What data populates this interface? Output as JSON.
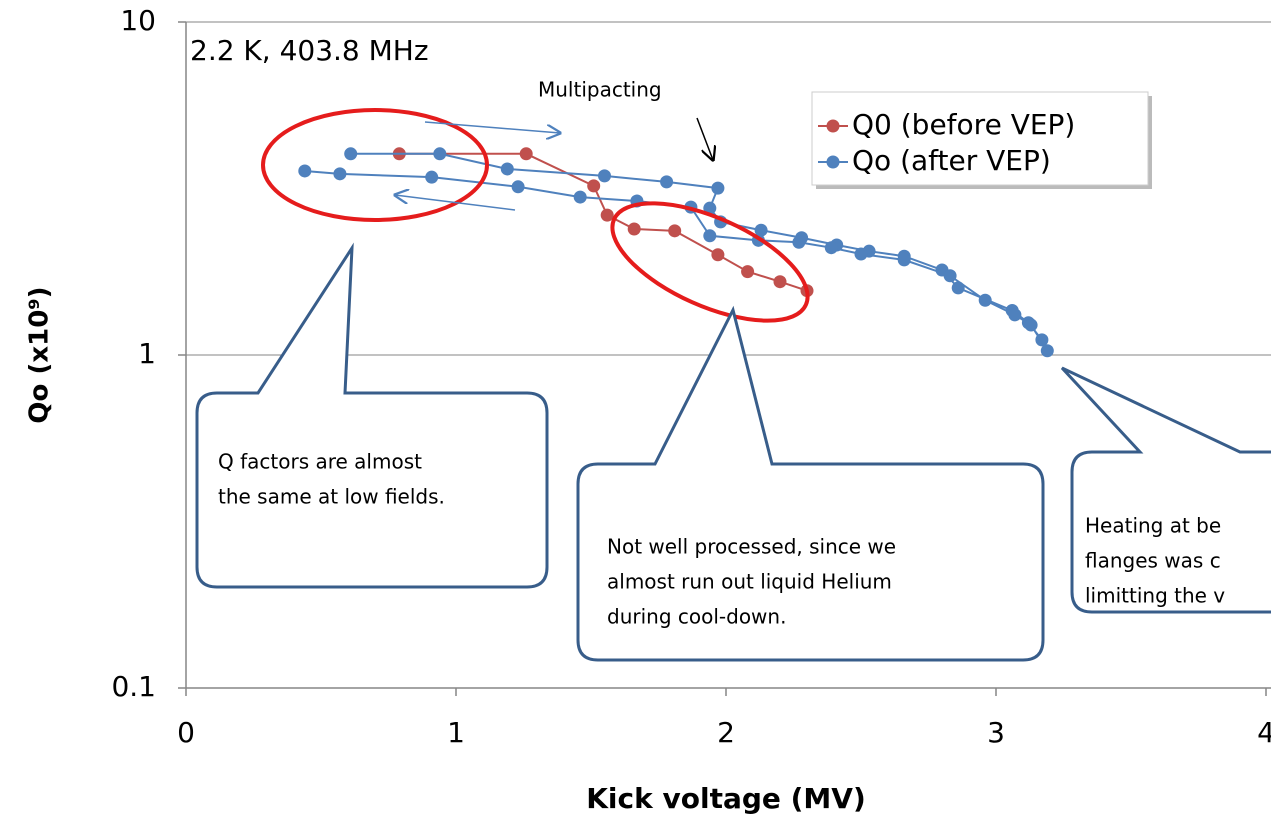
{
  "chart_data": {
    "type": "line",
    "xlabel": "Kick voltage (MV)",
    "ylabel": "Qo (x10⁹)",
    "xlim": [
      0,
      4
    ],
    "xticks": [
      0,
      1,
      2,
      3,
      4
    ],
    "ylim": [
      0.1,
      10
    ],
    "yticks": [
      0.1,
      1,
      10
    ],
    "log_y": true,
    "grid": true,
    "legend": "upper right",
    "series": [
      {
        "name": "Q0 (before VEP)",
        "color": "#c0504d",
        "x": [
          0.79,
          1.26,
          1.51,
          1.56,
          1.66,
          1.81,
          1.97,
          2.08,
          2.2,
          2.3
        ],
        "values": [
          4.02,
          4.02,
          3.22,
          2.63,
          2.39,
          2.36,
          2.0,
          1.78,
          1.66,
          1.56
        ]
      },
      {
        "name": "Qo (after VEP)",
        "color": "#4f81bd",
        "x": [
          0.61,
          0.94,
          1.19,
          1.55,
          1.78,
          1.97,
          1.94,
          1.98,
          2.13,
          2.28,
          2.41,
          2.53,
          2.66,
          2.8,
          2.86,
          3.06,
          3.12,
          3.17,
          3.19,
          3.13,
          3.07,
          2.96,
          2.83,
          2.66,
          2.5,
          2.39,
          2.27,
          2.12,
          1.94,
          1.87,
          1.67,
          1.46,
          1.23,
          0.91,
          0.57,
          0.44
        ],
        "values": [
          4.02,
          4.02,
          3.62,
          3.45,
          3.31,
          3.17,
          2.76,
          2.51,
          2.37,
          2.25,
          2.14,
          2.05,
          1.98,
          1.8,
          1.59,
          1.36,
          1.25,
          1.11,
          1.03,
          1.23,
          1.32,
          1.46,
          1.73,
          1.93,
          2.01,
          2.1,
          2.18,
          2.21,
          2.28,
          2.78,
          2.9,
          2.98,
          3.2,
          3.42,
          3.5,
          3.57
        ]
      }
    ],
    "annotations": {
      "condition": "2.2 K, 403.8 MHz",
      "multipacting": "Multipacting",
      "callouts": [
        [
          "Q factors are almost",
          "the same at low fields."
        ],
        [
          "Not well processed, since we",
          "almost run out liquid Helium",
          "during cool-down."
        ],
        [
          "Heating at be",
          "flanges was c",
          "limitting the v"
        ]
      ]
    }
  }
}
